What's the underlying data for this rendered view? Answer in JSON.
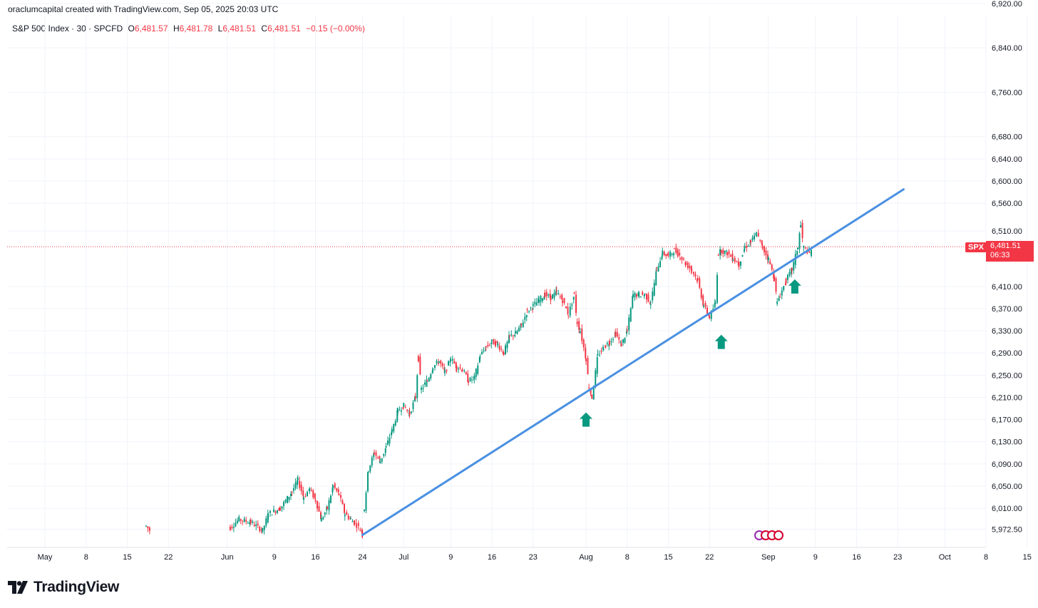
{
  "header": {
    "caption": "oraclumcapital created with TradingView.com, Sep 05, 2025 20:03 UTC",
    "instrument": "S&P 500 Index · 30 · SPCFD",
    "open_label": "O",
    "open": "6,481.57",
    "high_label": "H",
    "high": "6,481.78",
    "low_label": "L",
    "low": "6,481.51",
    "close_label": "C",
    "close": "6,481.51",
    "change": "−0.15 (−0.00%)"
  },
  "price_scale": {
    "symbol": "SPX",
    "last_price": "6,481.51",
    "countdown": "06:33"
  },
  "footer": {
    "brand": "TradingView"
  },
  "colors": {
    "up": "#089981",
    "down": "#f23645",
    "trendline": "#4a90e2",
    "arrow": "#089981",
    "grid": "#f0f3fa",
    "last_price_line": "#f23645"
  },
  "chart_data": {
    "type": "candlestick",
    "interval": "30",
    "y_ticks": [
      "6,920.00",
      "6,840.00",
      "6,760.00",
      "6,680.00",
      "6,640.00",
      "6,600.00",
      "6,560.00",
      "6,510.00",
      "6,410.00",
      "6,370.00",
      "6,330.00",
      "6,290.00",
      "6,250.00",
      "6,210.00",
      "6,170.00",
      "6,130.00",
      "6,090.00",
      "6,050.00",
      "6,010.00",
      "5,972.50"
    ],
    "y_tick_values": [
      6920,
      6840,
      6760,
      6680,
      6640,
      6600,
      6560,
      6510,
      6410,
      6370,
      6330,
      6290,
      6250,
      6210,
      6170,
      6130,
      6090,
      6050,
      6010,
      5972.5
    ],
    "x_ticks": [
      {
        "label": "May",
        "day": 0
      },
      {
        "label": "8",
        "day": 7
      },
      {
        "label": "15",
        "day": 14
      },
      {
        "label": "22",
        "day": 21
      },
      {
        "label": "Jun",
        "day": 31
      },
      {
        "label": "9",
        "day": 39
      },
      {
        "label": "16",
        "day": 46
      },
      {
        "label": "24",
        "day": 54
      },
      {
        "label": "Jul",
        "day": 61
      },
      {
        "label": "9",
        "day": 69
      },
      {
        "label": "16",
        "day": 76
      },
      {
        "label": "23",
        "day": 83
      },
      {
        "label": "Aug",
        "day": 92
      },
      {
        "label": "8",
        "day": 99
      },
      {
        "label": "15",
        "day": 106
      },
      {
        "label": "22",
        "day": 113
      },
      {
        "label": "Sep",
        "day": 123
      },
      {
        "label": "9",
        "day": 131
      },
      {
        "label": "16",
        "day": 138
      },
      {
        "label": "23",
        "day": 145
      },
      {
        "label": "Oct",
        "day": 153
      },
      {
        "label": "8",
        "day": 160
      },
      {
        "label": "15",
        "day": 167
      }
    ],
    "price_path": [
      [
        17.2,
        5978
      ],
      [
        18.0,
        5968
      ],
      [
        31.5,
        5975
      ],
      [
        33,
        5990
      ],
      [
        35,
        5985
      ],
      [
        37,
        5970
      ],
      [
        38,
        6000
      ],
      [
        40,
        6010
      ],
      [
        42,
        6040
      ],
      [
        43,
        6060
      ],
      [
        44,
        6030
      ],
      [
        45,
        6045
      ],
      [
        46,
        6025
      ],
      [
        47,
        5990
      ],
      [
        48,
        6010
      ],
      [
        49,
        6050
      ],
      [
        50,
        6035
      ],
      [
        51,
        6000
      ],
      [
        52,
        5990
      ],
      [
        53,
        5980
      ],
      [
        54,
        5965
      ],
      [
        54.3,
        6010
      ],
      [
        55,
        6080
      ],
      [
        56,
        6110
      ],
      [
        57,
        6095
      ],
      [
        58,
        6120
      ],
      [
        59,
        6150
      ],
      [
        60,
        6185
      ],
      [
        61,
        6195
      ],
      [
        62,
        6180
      ],
      [
        63,
        6210
      ],
      [
        63.5,
        6280
      ],
      [
        64,
        6225
      ],
      [
        65,
        6240
      ],
      [
        66,
        6265
      ],
      [
        67,
        6275
      ],
      [
        68,
        6255
      ],
      [
        69,
        6280
      ],
      [
        70,
        6265
      ],
      [
        71,
        6260
      ],
      [
        72,
        6240
      ],
      [
        73,
        6245
      ],
      [
        74,
        6285
      ],
      [
        75,
        6300
      ],
      [
        76,
        6310
      ],
      [
        77,
        6305
      ],
      [
        78,
        6290
      ],
      [
        79,
        6320
      ],
      [
        80,
        6325
      ],
      [
        81,
        6340
      ],
      [
        82,
        6365
      ],
      [
        83,
        6375
      ],
      [
        84,
        6385
      ],
      [
        85,
        6395
      ],
      [
        86,
        6390
      ],
      [
        87,
        6400
      ],
      [
        88,
        6385
      ],
      [
        89,
        6360
      ],
      [
        90,
        6395
      ],
      [
        90.5,
        6345
      ],
      [
        91,
        6330
      ],
      [
        92,
        6280
      ],
      [
        92.5,
        6230
      ],
      [
        93,
        6210
      ],
      [
        94,
        6285
      ],
      [
        95,
        6300
      ],
      [
        96,
        6310
      ],
      [
        97,
        6325
      ],
      [
        98,
        6305
      ],
      [
        99,
        6330
      ],
      [
        100,
        6395
      ],
      [
        101,
        6395
      ],
      [
        102,
        6395
      ],
      [
        103,
        6380
      ],
      [
        104,
        6440
      ],
      [
        105,
        6470
      ],
      [
        106,
        6465
      ],
      [
        107,
        6475
      ],
      [
        108,
        6465
      ],
      [
        109,
        6450
      ],
      [
        110,
        6440
      ],
      [
        111,
        6420
      ],
      [
        112,
        6375
      ],
      [
        113,
        6355
      ],
      [
        114,
        6380
      ],
      [
        114.5,
        6470
      ],
      [
        115,
        6475
      ],
      [
        116,
        6470
      ],
      [
        117,
        6460
      ],
      [
        118,
        6450
      ],
      [
        119,
        6480
      ],
      [
        120,
        6490
      ],
      [
        121,
        6505
      ],
      [
        122,
        6480
      ],
      [
        123,
        6460
      ],
      [
        124,
        6425
      ],
      [
        124.5,
        6380
      ],
      [
        125,
        6395
      ],
      [
        126,
        6420
      ],
      [
        127,
        6440
      ],
      [
        128,
        6480
      ],
      [
        128.5,
        6520
      ],
      [
        129,
        6480
      ],
      [
        130,
        6470
      ],
      [
        130.5,
        6482
      ]
    ],
    "trendline": {
      "start": {
        "day": 54,
        "price": 5962
      },
      "end": {
        "day": 146,
        "price": 6585
      }
    },
    "arrows": [
      {
        "day": 92,
        "price": 6170
      },
      {
        "day": 115,
        "price": 6310
      },
      {
        "day": 127.5,
        "price": 6410
      }
    ],
    "last_price": 6481.51
  }
}
